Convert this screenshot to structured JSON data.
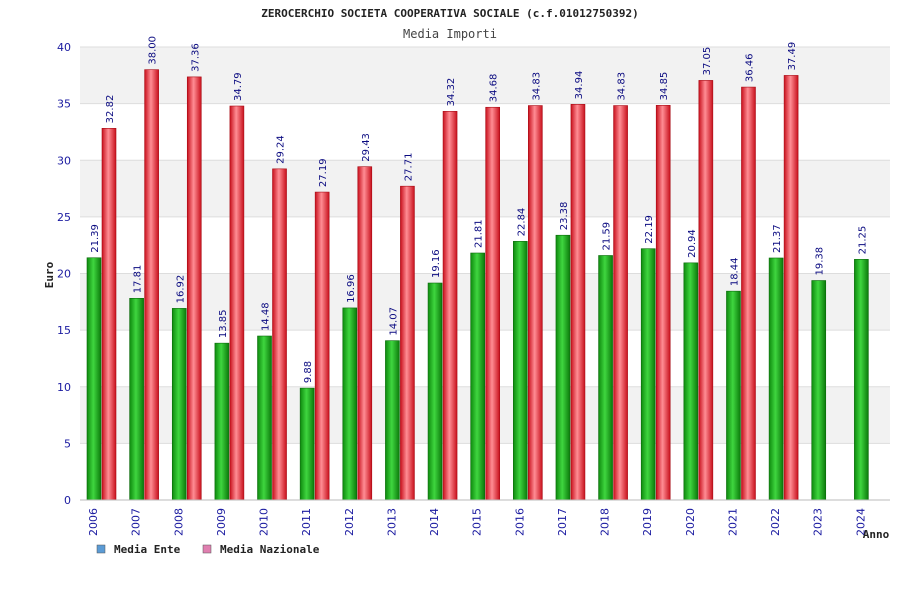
{
  "chart_data": {
    "type": "bar",
    "title": "ZEROCERCHIO SOCIETA COOPERATIVA SOCIALE (c.f.01012750392)",
    "subtitle": "Media Importi",
    "xlabel": "Anno",
    "ylabel": "Euro",
    "ylim": [
      0,
      40
    ],
    "yticks": [
      0,
      5,
      10,
      15,
      20,
      25,
      30,
      35,
      40
    ],
    "categories": [
      "2006",
      "2007",
      "2008",
      "2009",
      "2010",
      "2011",
      "2012",
      "2013",
      "2014",
      "2015",
      "2016",
      "2017",
      "2018",
      "2019",
      "2020",
      "2021",
      "2022",
      "2023",
      "2024"
    ],
    "series": [
      {
        "name": "Media Ente",
        "values": [
          21.39,
          17.81,
          16.92,
          13.85,
          14.48,
          9.88,
          16.96,
          14.07,
          19.16,
          21.81,
          22.84,
          23.38,
          21.59,
          22.19,
          20.94,
          18.44,
          21.37,
          19.38,
          21.25
        ],
        "labels": [
          "21.39",
          "17.81",
          "16.92",
          "13.85",
          "14.48",
          "9.88",
          "16.96",
          "14.07",
          "19.16",
          "21.81",
          "22.84",
          "23.38",
          "21.59",
          "22.19",
          "20.94",
          "18.44",
          "21.37",
          "19.38",
          "21.25"
        ]
      },
      {
        "name": "Media Nazionale",
        "values": [
          32.82,
          38.0,
          37.36,
          34.79,
          29.24,
          27.19,
          29.43,
          27.71,
          34.32,
          34.68,
          34.83,
          34.94,
          34.83,
          34.85,
          37.05,
          36.46,
          37.49,
          null,
          null
        ],
        "labels": [
          "32.82",
          "38.00",
          "37.36",
          "34.79",
          "29.24",
          "27.19",
          "29.43",
          "27.71",
          "34.32",
          "34.68",
          "34.83",
          "34.94",
          "34.83",
          "34.85",
          "37.05",
          "36.46",
          "37.49",
          null,
          null
        ]
      }
    ],
    "legend": [
      {
        "name": "Media Ente",
        "color": "#5b9bd5"
      },
      {
        "name": "Media Nazionale",
        "color": "#e07fb0"
      }
    ],
    "colors": {
      "ente_bar": "#22b422",
      "nazionale_bar": "#ee2a34",
      "band": "#f2f2f2",
      "grid": "#dddddd",
      "axis_text": "#1a1aa0"
    },
    "grid": true,
    "legend_position": "bottom-left"
  }
}
